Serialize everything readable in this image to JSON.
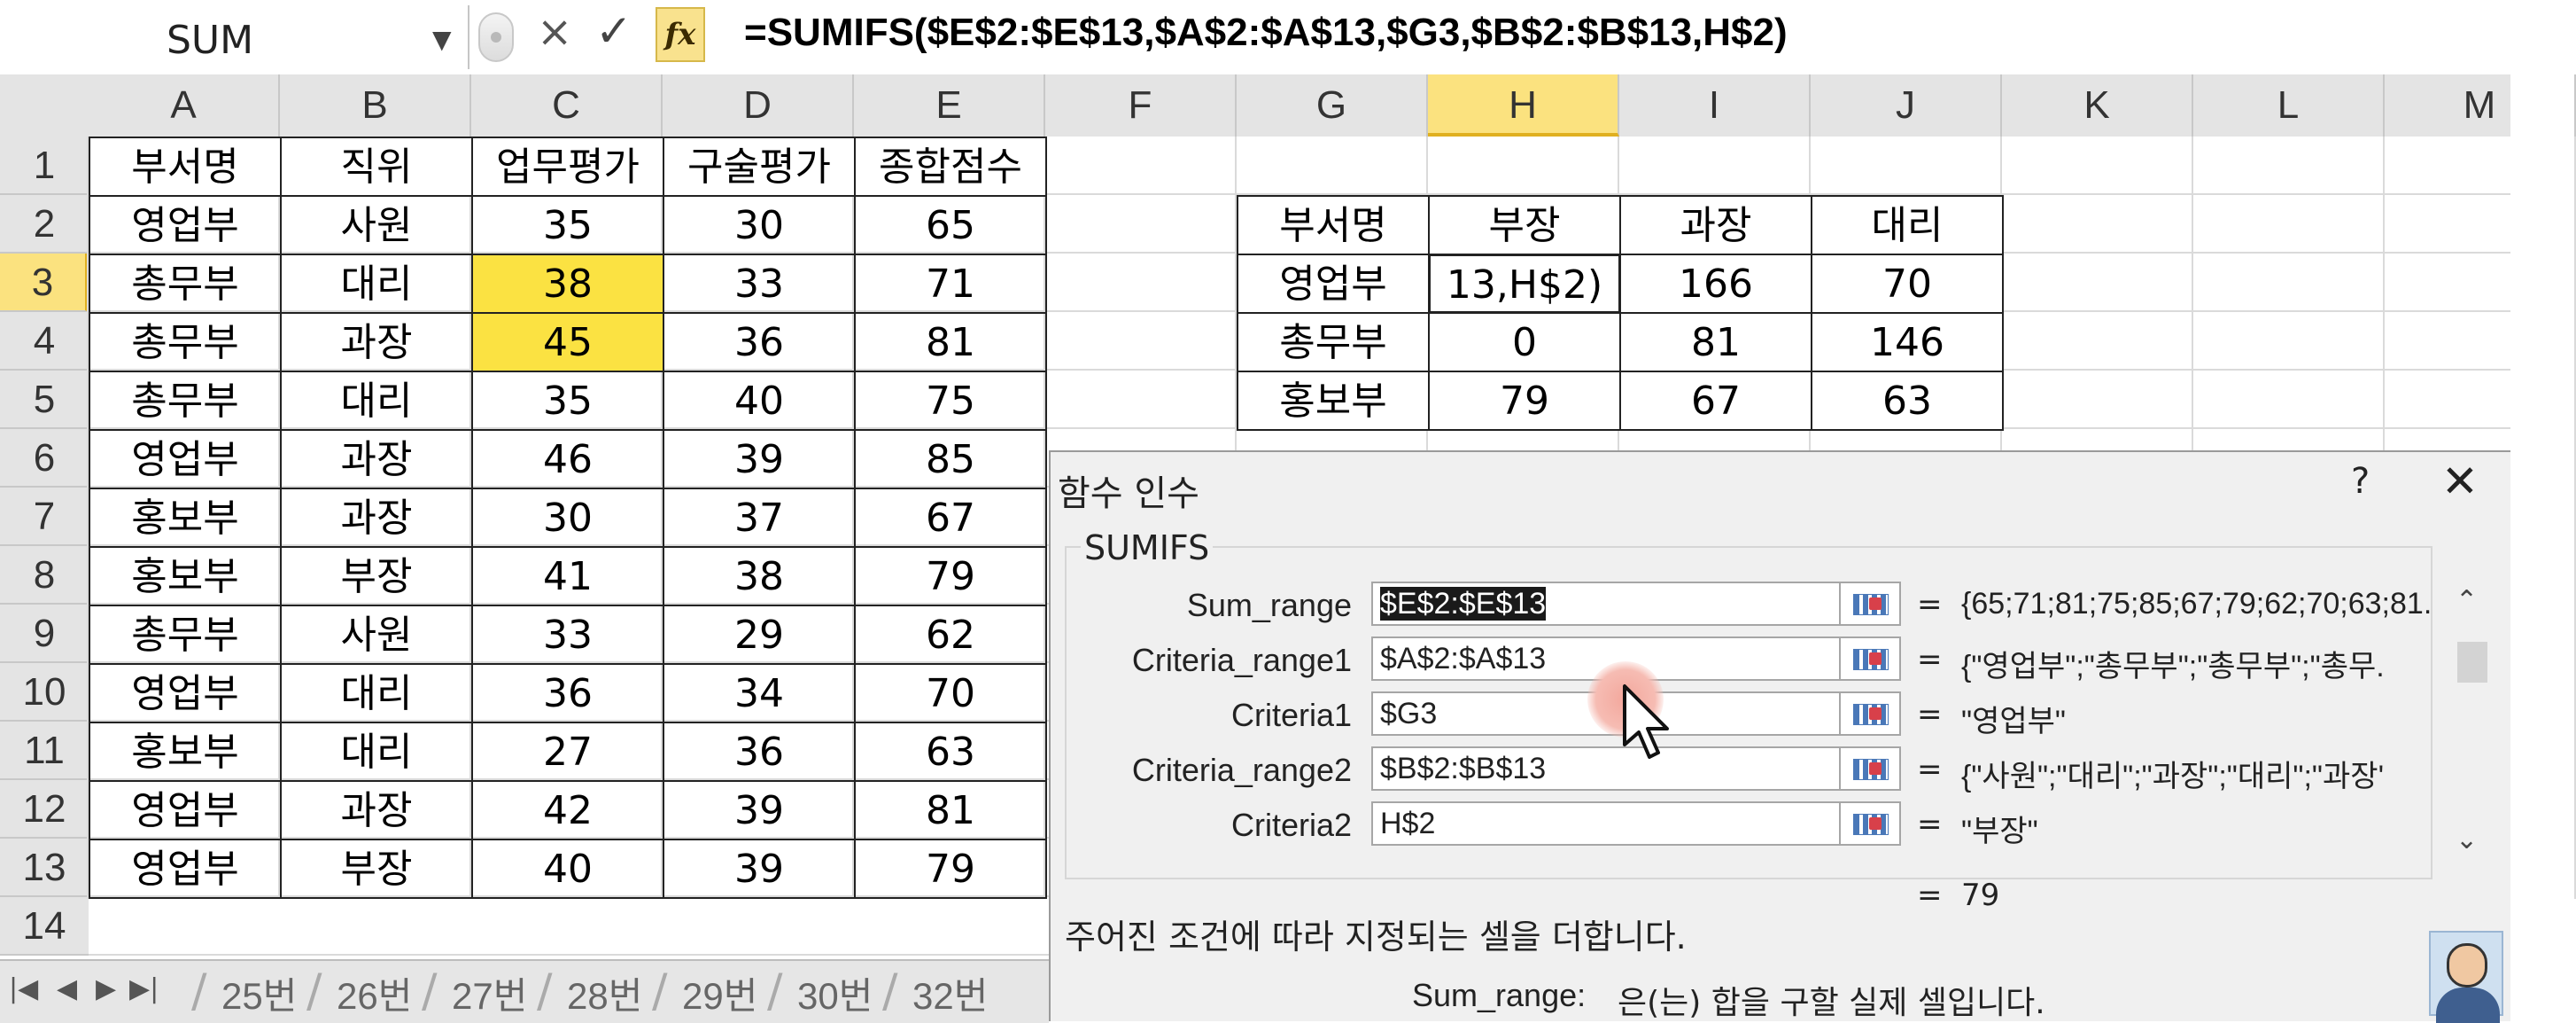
{
  "formula_bar": {
    "name_box": "SUM",
    "cancel_icon": "×",
    "enter_icon": "✓",
    "fx_label": "fx",
    "formula": "=SUMIFS($E$2:$E$13,$A$2:$A$13,$G3,$B$2:$B$13,H$2)"
  },
  "columns": [
    "A",
    "B",
    "C",
    "D",
    "E",
    "F",
    "G",
    "H",
    "I",
    "J",
    "K",
    "L",
    "M"
  ],
  "selected_column": "H",
  "rows": [
    "1",
    "2",
    "3",
    "4",
    "5",
    "6",
    "7",
    "8",
    "9",
    "10",
    "11",
    "12",
    "13",
    "14"
  ],
  "selected_row": "3",
  "main_table": {
    "headers": [
      "부서명",
      "직위",
      "업무평가",
      "구술평가",
      "종합점수"
    ],
    "rows": [
      [
        "영업부",
        "사원",
        "35",
        "30",
        "65"
      ],
      [
        "총무부",
        "대리",
        "38",
        "33",
        "71"
      ],
      [
        "총무부",
        "과장",
        "45",
        "36",
        "81"
      ],
      [
        "총무부",
        "대리",
        "35",
        "40",
        "75"
      ],
      [
        "영업부",
        "과장",
        "46",
        "39",
        "85"
      ],
      [
        "홍보부",
        "과장",
        "30",
        "37",
        "67"
      ],
      [
        "홍보부",
        "부장",
        "41",
        "38",
        "79"
      ],
      [
        "총무부",
        "사원",
        "33",
        "29",
        "62"
      ],
      [
        "영업부",
        "대리",
        "36",
        "34",
        "70"
      ],
      [
        "홍보부",
        "대리",
        "27",
        "36",
        "63"
      ],
      [
        "영업부",
        "과장",
        "42",
        "39",
        "81"
      ],
      [
        "영업부",
        "부장",
        "40",
        "39",
        "79"
      ]
    ],
    "highlight_color": "#fbe242"
  },
  "summary_table": {
    "headers": [
      "부서명",
      "부장",
      "과장",
      "대리"
    ],
    "rows": [
      [
        "영업부",
        "13,H$2)",
        "166",
        "70"
      ],
      [
        "총무부",
        "0",
        "81",
        "146"
      ],
      [
        "홍보부",
        "79",
        "67",
        "63"
      ]
    ]
  },
  "sheet_tabs": [
    "25번",
    "26번",
    "27번",
    "28번",
    "29번",
    "30번",
    "32번"
  ],
  "dialog": {
    "title": "함수 인수",
    "help": "?",
    "close": "✕",
    "function_name": "SUMIFS",
    "args": [
      {
        "label": "Sum_range",
        "value": "$E$2:$E$13",
        "result": "{65;71;81;75;85;67;79;62;70;63;81."
      },
      {
        "label": "Criteria_range1",
        "value": "$A$2:$A$13",
        "result": "{\"영업부\";\"총무부\";\"총무부\";\"총무."
      },
      {
        "label": "Criteria1",
        "value": "$G3",
        "result": "\"영업부\""
      },
      {
        "label": "Criteria_range2",
        "value": "$B$2:$B$13",
        "result": "{\"사원\";\"대리\";\"과장\";\"대리\";\"과장'"
      },
      {
        "label": "Criteria2",
        "value": "H$2",
        "result": "\"부장\""
      }
    ],
    "equals": "=",
    "formula_result": "79",
    "description": "주어진 조건에 따라 지정되는 셀을 더합니다.",
    "arg_help_label": "Sum_range:",
    "arg_help_text": "은(는) 합을 구할 실제 셀입니다.",
    "scroll_up": "⌃",
    "scroll_down": "⌄"
  },
  "icons": {
    "name_box_dropdown": "dropdown-arrow-icon",
    "cancel": "close-icon",
    "enter": "check-icon",
    "insert_function": "fx-icon",
    "range_collapse": "range-select-icon",
    "cursor": "mouse-pointer-icon"
  }
}
